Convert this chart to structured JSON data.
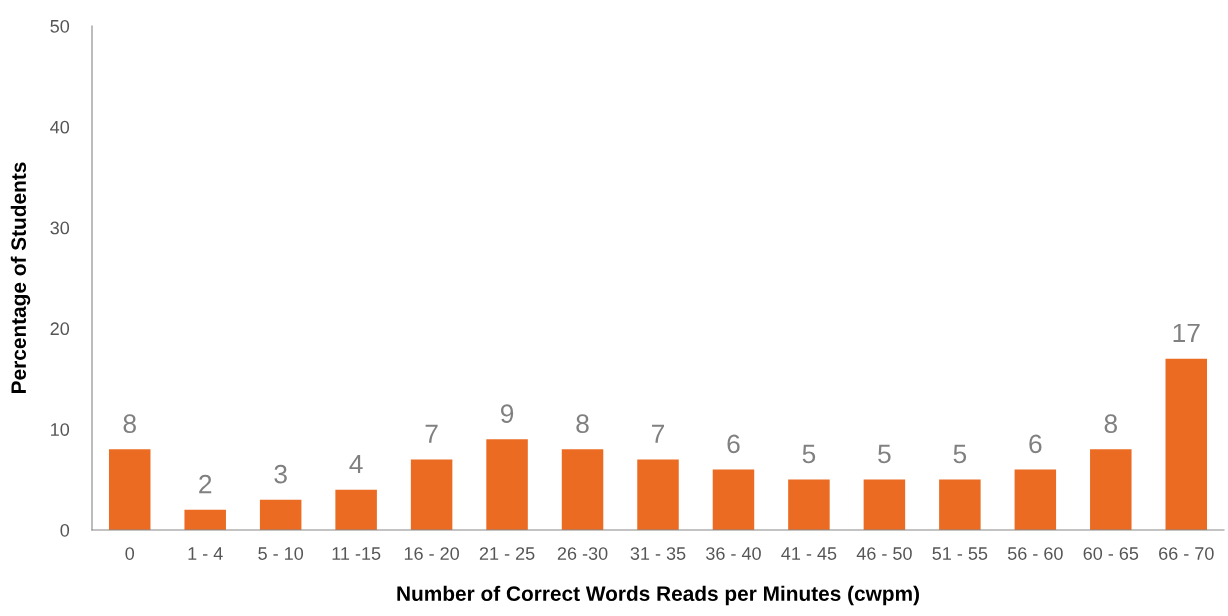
{
  "chart_data": {
    "type": "bar",
    "xlabel": "Number of Correct Words Reads per Minutes (cwpm)",
    "ylabel": "Percentage of Students",
    "categories": [
      "0",
      "1 - 4",
      "5 - 10",
      "11 -15",
      "16 - 20",
      "21 - 25",
      "26 -30",
      "31 - 35",
      "36 - 40",
      "41 - 45",
      "46 - 50",
      "51 - 55",
      "56 - 60",
      "60 - 65",
      "66 - 70"
    ],
    "values": [
      8,
      2,
      3,
      4,
      7,
      9,
      8,
      7,
      6,
      5,
      5,
      5,
      6,
      8,
      17
    ],
    "color": "#eb6b23",
    "ylim": [
      0,
      50
    ],
    "yticks": [
      0,
      10,
      20,
      30,
      40,
      50
    ],
    "grid": false,
    "data_labels": true
  }
}
